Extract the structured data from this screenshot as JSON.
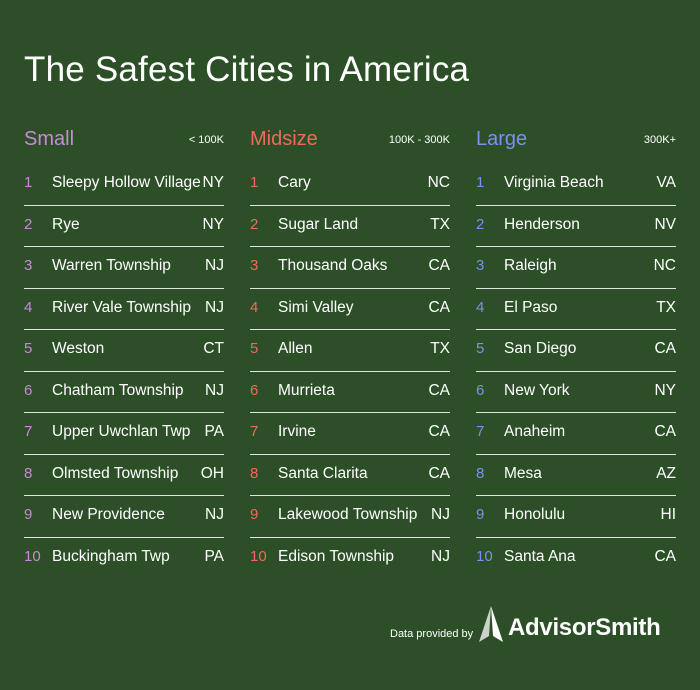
{
  "title": "The Safest Cities in America",
  "colors": {
    "background": "#2c4f28",
    "small": "#c88ad6",
    "midsize": "#f0695c",
    "large": "#7f8ef0"
  },
  "columns": [
    {
      "name": "Small",
      "range": "< 100K",
      "color": "#c88ad6",
      "rows": [
        {
          "rank": "1",
          "city": "Sleepy Hollow Village",
          "state": "NY"
        },
        {
          "rank": "2",
          "city": "Rye",
          "state": "NY"
        },
        {
          "rank": "3",
          "city": "Warren Township",
          "state": "NJ"
        },
        {
          "rank": "4",
          "city": "River Vale Township",
          "state": "NJ"
        },
        {
          "rank": "5",
          "city": "Weston",
          "state": "CT"
        },
        {
          "rank": "6",
          "city": "Chatham Township",
          "state": "NJ"
        },
        {
          "rank": "7",
          "city": "Upper Uwchlan Twp",
          "state": "PA"
        },
        {
          "rank": "8",
          "city": "Olmsted Township",
          "state": "OH"
        },
        {
          "rank": "9",
          "city": "New Providence",
          "state": "NJ"
        },
        {
          "rank": "10",
          "city": "Buckingham Twp",
          "state": "PA"
        }
      ]
    },
    {
      "name": "Midsize",
      "range": "100K - 300K",
      "color": "#f0695c",
      "rows": [
        {
          "rank": "1",
          "city": "Cary",
          "state": "NC"
        },
        {
          "rank": "2",
          "city": "Sugar Land",
          "state": "TX"
        },
        {
          "rank": "3",
          "city": "Thousand Oaks",
          "state": "CA"
        },
        {
          "rank": "4",
          "city": "Simi Valley",
          "state": "CA"
        },
        {
          "rank": "5",
          "city": "Allen",
          "state": "TX"
        },
        {
          "rank": "6",
          "city": "Murrieta",
          "state": "CA"
        },
        {
          "rank": "7",
          "city": "Irvine",
          "state": "CA"
        },
        {
          "rank": "8",
          "city": "Santa Clarita",
          "state": "CA"
        },
        {
          "rank": "9",
          "city": "Lakewood Township",
          "state": "NJ"
        },
        {
          "rank": "10",
          "city": "Edison Township",
          "state": "NJ"
        }
      ]
    },
    {
      "name": "Large",
      "range": "300K+",
      "color": "#7f8ef0",
      "rows": [
        {
          "rank": "1",
          "city": "Virginia Beach",
          "state": "VA"
        },
        {
          "rank": "2",
          "city": "Henderson",
          "state": "NV"
        },
        {
          "rank": "3",
          "city": "Raleigh",
          "state": "NC"
        },
        {
          "rank": "4",
          "city": "El Paso",
          "state": "TX"
        },
        {
          "rank": "5",
          "city": "San Diego",
          "state": "CA"
        },
        {
          "rank": "6",
          "city": "New York",
          "state": "NY"
        },
        {
          "rank": "7",
          "city": "Anaheim",
          "state": "CA"
        },
        {
          "rank": "8",
          "city": "Mesa",
          "state": "AZ"
        },
        {
          "rank": "9",
          "city": "Honolulu",
          "state": "HI"
        },
        {
          "rank": "10",
          "city": "Santa Ana",
          "state": "CA"
        }
      ]
    }
  ],
  "footer": {
    "provided_by": "Data provided by",
    "brand": "AdvisorSmith",
    "logo_icon": "triangle-sail-icon"
  }
}
